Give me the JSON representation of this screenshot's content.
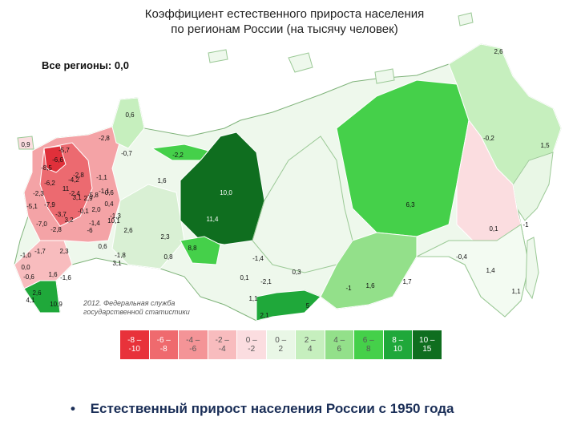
{
  "title_line1": "Коэффициент естественного прироста населения",
  "title_line2": "по регионам России (на тысячу человек)",
  "all_regions_label": "Все регионы: 0,0",
  "credit_line1": "2012. Федеральная служба",
  "credit_line2": "государственной статистики",
  "footer_bullet": "•",
  "footer_text": "Естественный прирост населения России с 1950 года",
  "legend": [
    {
      "label1": "-8 –",
      "label2": "-10",
      "color": "#e8323a"
    },
    {
      "label1": "-6 –",
      "label2": "-8",
      "color": "#ef6a6e"
    },
    {
      "label1": "-4 –",
      "label2": "-6",
      "color": "#f49497"
    },
    {
      "label1": "-2 –",
      "label2": "-4",
      "color": "#f8bcbe"
    },
    {
      "label1": "0 –",
      "label2": "-2",
      "color": "#fbdde0"
    },
    {
      "label1": "0 –",
      "label2": "2",
      "color": "#e9f7e6"
    },
    {
      "label1": "2 –",
      "label2": "4",
      "color": "#c6efbe"
    },
    {
      "label1": "4 –",
      "label2": "6",
      "color": "#93e08a"
    },
    {
      "label1": "6 –",
      "label2": "8",
      "color": "#45d04a"
    },
    {
      "label1": "8 –",
      "label2": "10",
      "color": "#1fa83a"
    },
    {
      "label1": "10 –",
      "label2": "15",
      "color": "#0f6e1f"
    }
  ],
  "map_values": [
    {
      "text": "2,6",
      "color": "#111"
    },
    {
      "text": "0,6",
      "color": "#111"
    },
    {
      "text": "0,9",
      "color": "#111"
    },
    {
      "text": "-2,8",
      "color": "#111"
    },
    {
      "text": "-0,7",
      "color": "#111"
    },
    {
      "text": "-2,2",
      "color": "#111"
    },
    {
      "text": "1,6",
      "color": "#111"
    },
    {
      "text": "10,0",
      "color": "#ffffff"
    },
    {
      "text": "11,4",
      "color": "#ffffff"
    },
    {
      "text": "8,8",
      "color": "#111"
    },
    {
      "text": "-0,2",
      "color": "#111"
    },
    {
      "text": "1,5",
      "color": "#111"
    },
    {
      "text": "6,3",
      "color": "#111"
    },
    {
      "text": "0,1",
      "color": "#111"
    },
    {
      "text": "-1",
      "color": "#111"
    },
    {
      "text": "-0,4",
      "color": "#111"
    },
    {
      "text": "1,4",
      "color": "#111"
    },
    {
      "text": "1,1",
      "color": "#111"
    },
    {
      "text": "-1,1",
      "color": "#111"
    },
    {
      "text": "-6,2",
      "color": "#111"
    },
    {
      "text": "-5,8",
      "color": "#111"
    },
    {
      "text": "-7,9",
      "color": "#111"
    },
    {
      "text": "-5,1",
      "color": "#111"
    },
    {
      "text": "-7,0",
      "color": "#111"
    },
    {
      "text": "-2,8",
      "color": "#111"
    },
    {
      "text": "-1,7",
      "color": "#111"
    },
    {
      "text": "2,3",
      "color": "#111"
    },
    {
      "text": "-1,0",
      "color": "#111"
    },
    {
      "text": "0,0",
      "color": "#111"
    },
    {
      "text": "-0,6",
      "color": "#111"
    },
    {
      "text": "1,6",
      "color": "#111"
    },
    {
      "text": "-1,6",
      "color": "#111"
    },
    {
      "text": "2,6",
      "color": "#111"
    },
    {
      "text": "4,1",
      "color": "#111"
    },
    {
      "text": "10,9",
      "color": "#111"
    },
    {
      "text": "3,1",
      "color": "#111"
    },
    {
      "text": "-1,8",
      "color": "#111"
    },
    {
      "text": "0,8",
      "color": "#111"
    },
    {
      "text": "0,1",
      "color": "#111"
    },
    {
      "text": "-2,1",
      "color": "#111"
    },
    {
      "text": "1,1",
      "color": "#111"
    },
    {
      "text": "0,3",
      "color": "#111"
    },
    {
      "text": "-1,4",
      "color": "#111"
    },
    {
      "text": "-1",
      "color": "#111"
    },
    {
      "text": "1,6",
      "color": "#111"
    },
    {
      "text": "1,7",
      "color": "#111"
    },
    {
      "text": "2,1",
      "color": "#111"
    },
    {
      "text": "5",
      "color": "#111"
    },
    {
      "text": "3,1",
      "color": "#111"
    },
    {
      "text": "11",
      "color": "#111"
    },
    {
      "text": "10,1",
      "color": "#111"
    },
    {
      "text": "2,6",
      "color": "#111"
    },
    {
      "text": "2,3",
      "color": "#111"
    },
    {
      "text": "0,6",
      "color": "#111"
    },
    {
      "text": "0,4",
      "color": "#111"
    },
    {
      "text": "2,9",
      "color": "#111"
    },
    {
      "text": "-1,1",
      "color": "#111"
    },
    {
      "text": "-1,3",
      "color": "#111"
    },
    {
      "text": "2,0",
      "color": "#111"
    },
    {
      "text": "-0,6",
      "color": "#111"
    },
    {
      "text": "-4,2",
      "color": "#111"
    },
    {
      "text": "3,2",
      "color": "#111"
    },
    {
      "text": "-6,6",
      "color": "#111"
    },
    {
      "text": "-8,5",
      "color": "#111"
    },
    {
      "text": "-5,7",
      "color": "#111"
    },
    {
      "text": "-3,7",
      "color": "#111"
    },
    {
      "text": "-2,3",
      "color": "#111"
    },
    {
      "text": "-2,4",
      "color": "#111"
    },
    {
      "text": "-0,1",
      "color": "#111"
    },
    {
      "text": "-6",
      "color": "#111"
    },
    {
      "text": "-2,8",
      "color": "#111"
    },
    {
      "text": "-1,4",
      "color": "#111"
    }
  ]
}
